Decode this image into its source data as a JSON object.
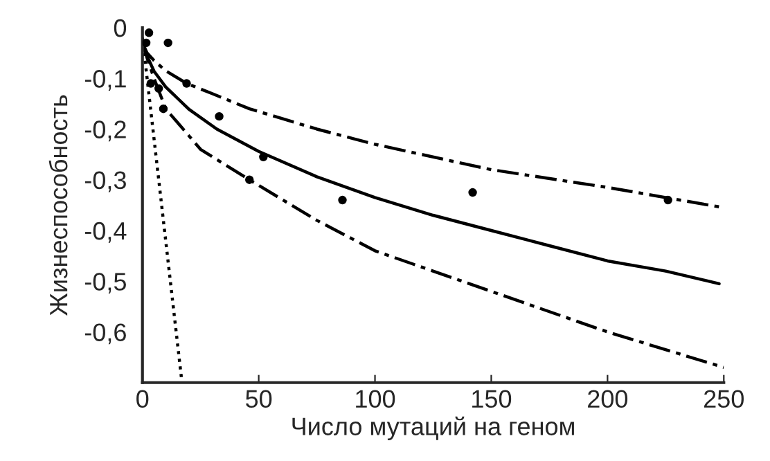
{
  "chart_data": {
    "type": "line",
    "xlabel": "Число мутаций на геном",
    "ylabel": "Жизнеспособность",
    "xlim": [
      0,
      250
    ],
    "ylim": [
      -0.7,
      0
    ],
    "xticks": [
      0,
      50,
      100,
      150,
      200,
      250
    ],
    "yticks": [
      {
        "value": 0,
        "label": "0"
      },
      {
        "value": -0.1,
        "label": "-0,1"
      },
      {
        "value": -0.2,
        "label": "-0,2"
      },
      {
        "value": -0.3,
        "label": "-0,3"
      },
      {
        "value": -0.4,
        "label": "-0,4"
      },
      {
        "value": -0.5,
        "label": "-0,5"
      },
      {
        "value": -0.6,
        "label": "-0,6"
      }
    ],
    "grid": false,
    "legend": false,
    "series": [
      {
        "type": "scatter",
        "marker": "circle",
        "color": "#000000",
        "x": [
          2.8,
          1.6,
          11,
          3.6,
          7,
          19,
          9,
          33,
          46,
          52,
          86,
          142,
          226
        ],
        "values": [
          -0.01,
          -0.03,
          -0.03,
          -0.11,
          -0.12,
          -0.11,
          -0.16,
          -0.175,
          -0.3,
          -0.255,
          -0.34,
          -0.325,
          -0.34
        ]
      },
      {
        "line_style": "solid",
        "color": "#000000",
        "x": [
          0,
          2,
          5,
          10,
          20,
          32,
          50,
          75,
          100,
          125,
          150,
          175,
          200,
          225,
          248
        ],
        "values": [
          -0.03,
          -0.056,
          -0.086,
          -0.117,
          -0.161,
          -0.2,
          -0.244,
          -0.294,
          -0.335,
          -0.37,
          -0.4,
          -0.43,
          -0.46,
          -0.48,
          -0.505
        ]
      },
      {
        "line_style": "dashed",
        "color": "#000000",
        "x": [
          0,
          2,
          5,
          10,
          19,
          30,
          46,
          75,
          100,
          150,
          200,
          250
        ],
        "values": [
          -0.03,
          -0.05,
          -0.065,
          -0.085,
          -0.11,
          -0.13,
          -0.16,
          -0.2,
          -0.23,
          -0.28,
          -0.315,
          -0.355
        ]
      },
      {
        "line_style": "dashed",
        "color": "#000000",
        "x": [
          0,
          2,
          5,
          10,
          25,
          46,
          75,
          100,
          150,
          200,
          250
        ],
        "values": [
          -0.03,
          -0.06,
          -0.1,
          -0.16,
          -0.24,
          -0.3,
          -0.38,
          -0.44,
          -0.52,
          -0.6,
          -0.67
        ]
      },
      {
        "line_style": "dotted",
        "color": "#000000",
        "x": [
          0,
          17
        ],
        "values": [
          -0.02,
          -0.7
        ]
      }
    ]
  }
}
